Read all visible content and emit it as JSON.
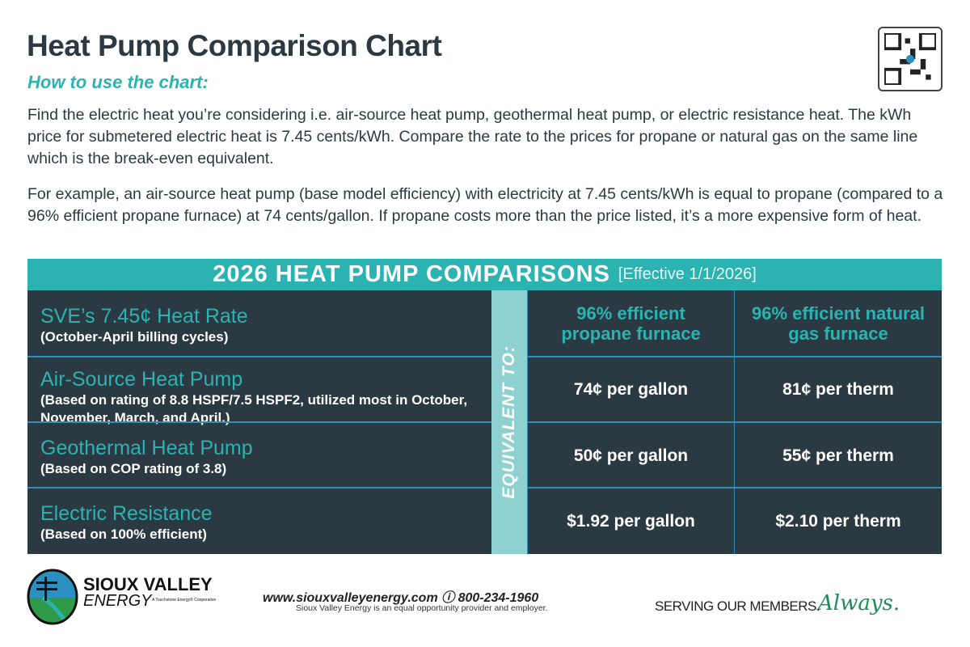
{
  "title": "Heat Pump Comparison Chart",
  "subtitle": "How to use the chart:",
  "paragraphs": [
    "Find the electric heat you’re considering i.e. air-source heat pump, geothermal heat pump, or electric resistance heat. The kWh price for submetered electric heat is 7.45 cents/kWh. Compare the rate to the prices for propane or natural gas on the same line which is the break-even equivalent.",
    "For example, an air-source heat pump (base model efficiency) with electricity at 7.45 cents/kWh is equal to propane (compared to a 96% efficient propane furnace) at 74 cents/gallon. If propane costs more than the price listed, it’s a more expensive form of heat."
  ],
  "table": {
    "heading": "2026 HEAT PUMP COMPARISONS",
    "effective": "[Effective 1/1/2026]",
    "equivalent": "EQUIVALENT TO:",
    "columns": [
      "96%  efficient propane furnace",
      "96% efficient natural gas furnace"
    ],
    "rows": [
      {
        "title": "SVE’s 7.45¢ Heat Rate",
        "desc": "(October-April billing cycles)"
      },
      {
        "title": "Air-Source Heat Pump",
        "desc": "(Based on rating of 8.8 HSPF/7.5 HSPF2, utilized most in October, November, March, and April.)",
        "propane": "74¢ per gallon",
        "gas": "81¢ per therm"
      },
      {
        "title": "Geothermal Heat Pump",
        "desc": "(Based on COP rating of 3.8)",
        "propane": "50¢ per gallon",
        "gas": "55¢ per therm"
      },
      {
        "title": "Electric Resistance",
        "desc": "(Based on 100% efficient)",
        "propane": "$1.92 per gallon",
        "gas": "$2.10 per therm"
      }
    ]
  },
  "footer": {
    "logo_line1": "SIOUX VALLEY",
    "logo_line2": "ENERGY",
    "logo_tag": "A Touchstone Energy® Cooperative",
    "contact": "www.siouxvalleyenergy.com ⓘ 800-234-1960",
    "equal": "Sioux Valley Energy is an equal opportunity provider and employer.",
    "slogan": "SERVING OUR MEMBERS.",
    "slogan_script": "Always.",
    "colors": {
      "teal": "#2bb3b1",
      "dark": "#2b3a42",
      "green": "#1f8a5a"
    }
  }
}
